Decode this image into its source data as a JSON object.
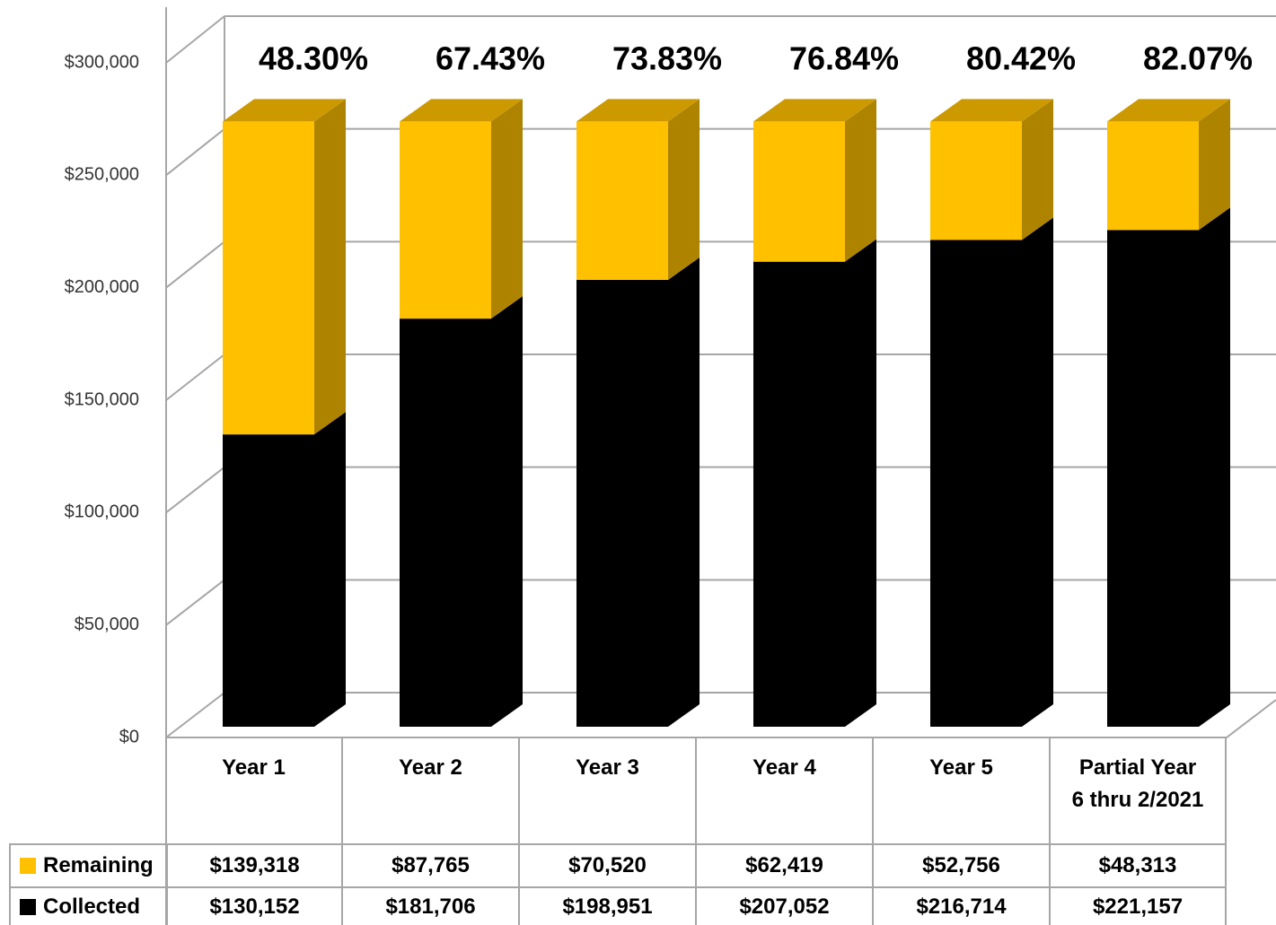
{
  "chart_data": {
    "type": "bar3d_stacked",
    "categories": [
      "Year 1",
      "Year 2",
      "Year 3",
      "Year 4",
      "Year 5",
      "Partial Year 6 thru 2/2021"
    ],
    "series": [
      {
        "name": "Remaining",
        "color": "#ffc000",
        "values": [
          139318,
          87765,
          70520,
          62419,
          52756,
          48313
        ],
        "value_labels": [
          "$139,318",
          "$87,765",
          "$70,520",
          "$62,419",
          "$52,756",
          "$48,313"
        ]
      },
      {
        "name": "Collected",
        "color": "#000000",
        "values": [
          130152,
          181706,
          198951,
          207052,
          216714,
          221157
        ],
        "value_labels": [
          "$130,152",
          "$181,706",
          "$198,951",
          "$207,052",
          "$216,714",
          "$221,157"
        ]
      }
    ],
    "annotations": [
      "48.30%",
      "67.43%",
      "73.83%",
      "76.84%",
      "80.42%",
      "82.07%"
    ],
    "ylim": [
      0,
      300000
    ],
    "yticks": [
      {
        "value": 0,
        "label": "$0"
      },
      {
        "value": 50000,
        "label": "$50,000"
      },
      {
        "value": 100000,
        "label": "$100,000"
      },
      {
        "value": 150000,
        "label": "$150,000"
      },
      {
        "value": 200000,
        "label": "$200,000"
      },
      {
        "value": 250000,
        "label": "$250,000"
      },
      {
        "value": 300000,
        "label": "$300,000"
      }
    ],
    "grid": true,
    "legend": "table"
  }
}
